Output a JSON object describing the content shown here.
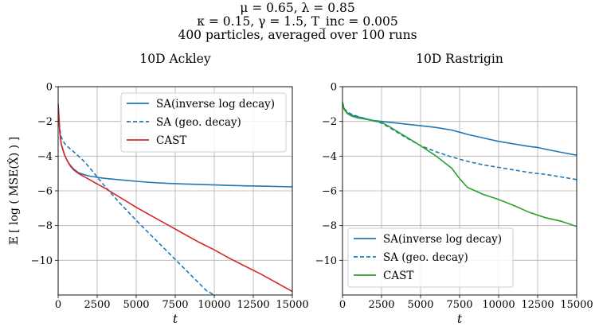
{
  "figure": {
    "suptitle_lines": [
      "μ = 0.65, λ = 0.85",
      "κ = 0.15, γ = 1.5, T_inc = 0.005",
      "400 particles, averaged over 100 runs"
    ],
    "ylabel": "𝔼 [ log ( MSE(X̂) ) ]"
  },
  "chart_data": [
    {
      "type": "line",
      "title": "10D Ackley",
      "xlabel": "t",
      "ylabel": "𝔼 [ log ( MSE(X̂) ) ]",
      "xlim": [
        0,
        15000
      ],
      "ylim": [
        -12,
        0
      ],
      "xticks": [
        0,
        2500,
        5000,
        7500,
        10000,
        12500,
        15000
      ],
      "yticks": [
        0,
        -2,
        -4,
        -6,
        -8,
        -10
      ],
      "grid": true,
      "legend_position": "top-right",
      "series": [
        {
          "name": "SA(inverse log decay)",
          "color": "#1f77b4",
          "dash": "solid",
          "x": [
            0,
            100,
            200,
            400,
            600,
            800,
            1000,
            1300,
            1600,
            2000,
            2500,
            3000,
            4000,
            5000,
            6000,
            7000,
            8000,
            9000,
            10000,
            11000,
            12000,
            13000,
            14000,
            15000
          ],
          "y": [
            -1.0,
            -2.6,
            -3.3,
            -3.9,
            -4.3,
            -4.55,
            -4.75,
            -4.95,
            -5.05,
            -5.15,
            -5.22,
            -5.28,
            -5.37,
            -5.45,
            -5.52,
            -5.57,
            -5.6,
            -5.63,
            -5.66,
            -5.69,
            -5.71,
            -5.73,
            -5.75,
            -5.77
          ]
        },
        {
          "name": "SA (geo. decay)",
          "color": "#1f77b4",
          "dash": "dashed",
          "x": [
            0,
            100,
            200,
            400,
            600,
            800,
            1000,
            1300,
            1600,
            2000,
            2500,
            3000,
            4000,
            5000,
            6000,
            7000,
            8000,
            9000,
            9500,
            10000
          ],
          "y": [
            -1.0,
            -2.4,
            -2.9,
            -3.25,
            -3.45,
            -3.6,
            -3.75,
            -4.0,
            -4.25,
            -4.65,
            -5.2,
            -5.75,
            -6.75,
            -7.7,
            -8.6,
            -9.5,
            -10.4,
            -11.3,
            -11.75,
            -12.0
          ]
        },
        {
          "name": "CAST",
          "color": "#d62728",
          "dash": "solid",
          "x": [
            0,
            100,
            200,
            400,
            600,
            800,
            1000,
            1300,
            1600,
            2000,
            2500,
            3000,
            4000,
            5000,
            6000,
            7000,
            8000,
            9000,
            10000,
            11000,
            12000,
            13000,
            14000,
            15000
          ],
          "y": [
            -1.0,
            -2.6,
            -3.3,
            -3.9,
            -4.3,
            -4.6,
            -4.8,
            -5.0,
            -5.15,
            -5.35,
            -5.6,
            -5.85,
            -6.4,
            -6.95,
            -7.45,
            -7.95,
            -8.45,
            -8.95,
            -9.4,
            -9.9,
            -10.35,
            -10.8,
            -11.3,
            -11.8
          ]
        }
      ]
    },
    {
      "type": "line",
      "title": "10D Rastrigin",
      "xlabel": "t",
      "ylabel": "",
      "xlim": [
        0,
        15000
      ],
      "ylim": [
        -12,
        0
      ],
      "xticks": [
        0,
        2500,
        5000,
        7500,
        10000,
        12500,
        15000
      ],
      "yticks": [
        0,
        -2,
        -4,
        -6,
        -8,
        -10
      ],
      "grid": true,
      "legend_position": "bottom-left",
      "series": [
        {
          "name": "SA(inverse log decay)",
          "color": "#1f77b4",
          "dash": "solid",
          "x": [
            0,
            100,
            300,
            600,
            1000,
            1500,
            2000,
            2500,
            3000,
            4000,
            5000,
            6000,
            7000,
            7500,
            8000,
            9000,
            10000,
            11000,
            12000,
            12500,
            13000,
            14000,
            15000
          ],
          "y": [
            -0.9,
            -1.3,
            -1.5,
            -1.65,
            -1.75,
            -1.85,
            -1.95,
            -2.0,
            -2.05,
            -2.15,
            -2.25,
            -2.35,
            -2.5,
            -2.62,
            -2.75,
            -2.95,
            -3.15,
            -3.3,
            -3.45,
            -3.5,
            -3.6,
            -3.78,
            -3.95
          ]
        },
        {
          "name": "SA (geo. decay)",
          "color": "#1f77b4",
          "dash": "dashed",
          "x": [
            0,
            100,
            300,
            600,
            1000,
            1500,
            2000,
            2500,
            3000,
            4000,
            5000,
            6000,
            7000,
            8000,
            9000,
            10000,
            11000,
            12000,
            13000,
            14000,
            15000
          ],
          "y": [
            -0.9,
            -1.25,
            -1.45,
            -1.6,
            -1.72,
            -1.85,
            -1.97,
            -2.1,
            -2.35,
            -2.9,
            -3.4,
            -3.75,
            -4.05,
            -4.3,
            -4.5,
            -4.65,
            -4.8,
            -4.95,
            -5.05,
            -5.2,
            -5.35
          ]
        },
        {
          "name": "CAST",
          "color": "#2ca02c",
          "dash": "solid",
          "x": [
            0,
            100,
            300,
            600,
            1000,
            1500,
            2000,
            2500,
            3000,
            4000,
            5000,
            6000,
            7000,
            7500,
            8000,
            9000,
            10000,
            11000,
            12000,
            13000,
            14000,
            15000
          ],
          "y": [
            -0.9,
            -1.3,
            -1.55,
            -1.7,
            -1.8,
            -1.88,
            -1.97,
            -2.05,
            -2.3,
            -2.85,
            -3.4,
            -4.0,
            -4.7,
            -5.3,
            -5.8,
            -6.2,
            -6.5,
            -6.85,
            -7.25,
            -7.55,
            -7.75,
            -8.05
          ]
        }
      ]
    }
  ]
}
